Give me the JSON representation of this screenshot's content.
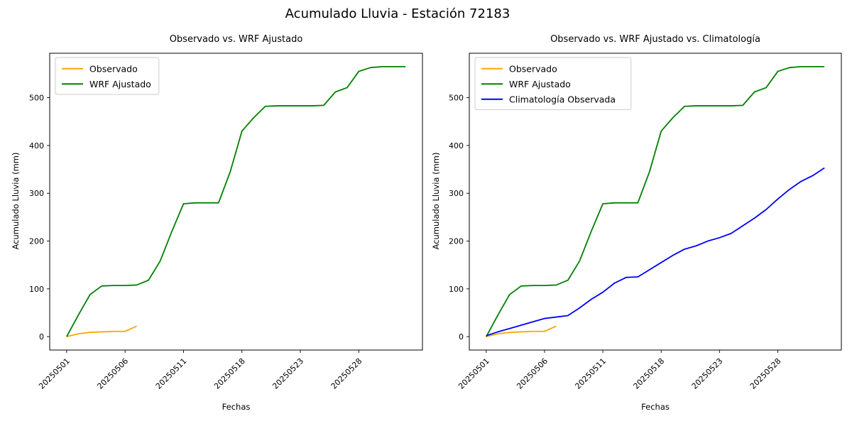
{
  "figure": {
    "title": "Acumulado Lluvia - Estación 72183",
    "background": "#ffffff"
  },
  "colors": {
    "observado": "#ffa500",
    "wrf_ajustado": "#008000",
    "climatologia": "#0000ff",
    "axes": "#000000",
    "legend_border": "#cccccc"
  },
  "chart_data": [
    {
      "type": "line",
      "title": "Observado vs. WRF Ajustado",
      "xlabel": "Fechas",
      "ylabel": "Acumulado Lluvia (mm)",
      "x_tick_positions": [
        0,
        5,
        10,
        15,
        20,
        25
      ],
      "x_tick_labels": [
        "20250501",
        "20250506",
        "20250511",
        "20250518",
        "20250523",
        "20250528"
      ],
      "y_ticks": [
        0,
        100,
        200,
        300,
        400,
        500
      ],
      "n_points": 30,
      "ylim": [
        -28,
        593
      ],
      "legend_position": "upper left",
      "grid": false,
      "series": [
        {
          "name": "Observado",
          "color": "#ffa500",
          "values": [
            0,
            6,
            9,
            10,
            11,
            11,
            22
          ]
        },
        {
          "name": "WRF Ajustado",
          "color": "#008000",
          "values": [
            0,
            45,
            88,
            106,
            107,
            107,
            108,
            118,
            158,
            220,
            278,
            280,
            280,
            280,
            345,
            430,
            458,
            482,
            483,
            483,
            483,
            483,
            484,
            512,
            521,
            555,
            563,
            565,
            565,
            565
          ]
        }
      ]
    },
    {
      "type": "line",
      "title": "Observado vs. WRF Ajustado vs. Climatología",
      "xlabel": "Fechas",
      "ylabel": "Acumulado Lluvia (mm)",
      "x_tick_positions": [
        0,
        5,
        10,
        15,
        20,
        25
      ],
      "x_tick_labels": [
        "20250501",
        "20250506",
        "20250511",
        "20250518",
        "20250523",
        "20250528"
      ],
      "y_ticks": [
        0,
        100,
        200,
        300,
        400,
        500
      ],
      "n_points": 30,
      "ylim": [
        -28,
        593
      ],
      "legend_position": "upper left",
      "grid": false,
      "series": [
        {
          "name": "Observado",
          "color": "#ffa500",
          "values": [
            0,
            6,
            9,
            10,
            11,
            11,
            22
          ]
        },
        {
          "name": "WRF Ajustado",
          "color": "#008000",
          "values": [
            0,
            45,
            88,
            106,
            107,
            107,
            108,
            118,
            158,
            220,
            278,
            280,
            280,
            280,
            345,
            430,
            458,
            482,
            483,
            483,
            483,
            483,
            484,
            512,
            521,
            555,
            563,
            565,
            565,
            565
          ]
        },
        {
          "name": "Climatología Observada",
          "color": "#0000ff",
          "values": [
            2,
            10,
            17,
            24,
            31,
            38,
            41,
            44,
            60,
            78,
            93,
            112,
            124,
            125,
            140,
            155,
            170,
            183,
            190,
            200,
            207,
            216,
            232,
            248,
            266,
            288,
            308,
            325,
            337,
            353
          ]
        }
      ]
    }
  ]
}
